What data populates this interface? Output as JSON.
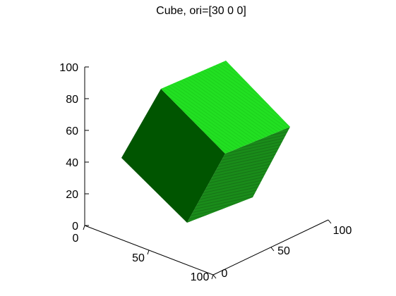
{
  "chart_data": {
    "type": "3d-surface",
    "title": "Cube, ori=[30 0 0]",
    "xlabel": "",
    "ylabel": "",
    "zlabel": "",
    "grid": false,
    "axes": {
      "x": {
        "range": [
          0,
          100
        ],
        "ticks": [
          "0",
          "50",
          "100"
        ]
      },
      "y": {
        "range": [
          0,
          100
        ],
        "ticks": [
          "0",
          "50",
          "100"
        ]
      },
      "z": {
        "range": [
          0,
          100
        ],
        "ticks": [
          "0",
          "20",
          "40",
          "60",
          "80",
          "100"
        ]
      }
    },
    "object": {
      "shape": "cube",
      "orientation_deg": [
        30,
        0,
        0
      ],
      "faces": {
        "top": "#22e022",
        "left": "#005500",
        "right": "#1a8c1a"
      }
    }
  }
}
